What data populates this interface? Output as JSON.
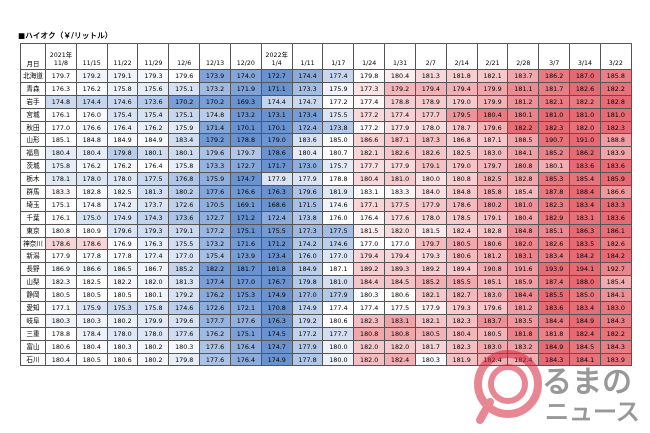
{
  "title": "■ハイオク（￥/リットル）",
  "header": {
    "corner": "月日",
    "dates": [
      {
        "top": "2021年",
        "bottom": "11/8"
      },
      {
        "top": "",
        "bottom": "11/15"
      },
      {
        "top": "",
        "bottom": "11/22"
      },
      {
        "top": "",
        "bottom": "11/29"
      },
      {
        "top": "",
        "bottom": "12/6"
      },
      {
        "top": "",
        "bottom": "12/13"
      },
      {
        "top": "",
        "bottom": "12/20"
      },
      {
        "top": "2022年",
        "bottom": "1/4"
      },
      {
        "top": "",
        "bottom": "1/11"
      },
      {
        "top": "",
        "bottom": "1/17"
      },
      {
        "top": "",
        "bottom": "1/24"
      },
      {
        "top": "",
        "bottom": "1/31"
      },
      {
        "top": "",
        "bottom": "2/7"
      },
      {
        "top": "",
        "bottom": "2/14"
      },
      {
        "top": "",
        "bottom": "2/21"
      },
      {
        "top": "",
        "bottom": "2/28"
      },
      {
        "top": "",
        "bottom": "3/7"
      },
      {
        "top": "",
        "bottom": "3/14"
      },
      {
        "top": "",
        "bottom": "3/22"
      }
    ]
  },
  "rows": [
    {
      "pref": "北海道",
      "values": [
        "179.7",
        "179.2",
        "179.1",
        "179.3",
        "179.6",
        "173.9",
        "174.0",
        "172.7",
        "174.4",
        "177.4",
        "179.8",
        "180.4",
        "181.3",
        "181.8",
        "182.1",
        "183.7",
        "186.2",
        "187.0",
        "185.8"
      ]
    },
    {
      "pref": "青森",
      "values": [
        "176.3",
        "176.2",
        "175.8",
        "175.6",
        "175.1",
        "173.2",
        "171.9",
        "171.1",
        "173.3",
        "175.9",
        "177.3",
        "179.2",
        "179.4",
        "179.4",
        "179.9",
        "181.1",
        "181.7",
        "182.6",
        "182.2"
      ]
    },
    {
      "pref": "岩手",
      "values": [
        "174.8",
        "174.4",
        "174.6",
        "173.6",
        "170.2",
        "170.2",
        "169.3",
        "174.4",
        "174.7",
        "177.2",
        "177.4",
        "178.8",
        "178.9",
        "179.0",
        "179.9",
        "181.2",
        "182.1",
        "182.2",
        "182.8"
      ]
    },
    {
      "pref": "宮城",
      "values": [
        "176.1",
        "176.0",
        "175.4",
        "175.4",
        "175.1",
        "174.8",
        "173.2",
        "173.1",
        "173.4",
        "175.5",
        "177.2",
        "177.4",
        "177.7",
        "179.5",
        "180.4",
        "180.1",
        "181.0",
        "181.0",
        "181.0"
      ]
    },
    {
      "pref": "秋田",
      "values": [
        "177.0",
        "176.6",
        "176.4",
        "176.2",
        "175.9",
        "171.4",
        "170.1",
        "170.1",
        "172.4",
        "173.8",
        "177.2",
        "177.9",
        "178.0",
        "178.7",
        "179.6",
        "182.2",
        "182.3",
        "182.0",
        "182.3"
      ]
    },
    {
      "pref": "山形",
      "values": [
        "185.1",
        "184.8",
        "184.9",
        "184.9",
        "183.4",
        "179.2",
        "178.8",
        "179.0",
        "183.6",
        "185.0",
        "186.6",
        "187.1",
        "187.3",
        "186.8",
        "187.1",
        "188.5",
        "190.7",
        "191.0",
        "188.8"
      ]
    },
    {
      "pref": "福島",
      "values": [
        "180.4",
        "180.4",
        "179.8",
        "180.1",
        "180.1",
        "179.6",
        "179.7",
        "178.6",
        "180.4",
        "180.7",
        "182.1",
        "182.6",
        "182.6",
        "182.5",
        "183.0",
        "184.1",
        "185.2",
        "186.2",
        "183.9"
      ]
    },
    {
      "pref": "茨城",
      "values": [
        "175.8",
        "176.2",
        "176.2",
        "176.4",
        "175.8",
        "173.3",
        "172.7",
        "171.7",
        "173.0",
        "175.7",
        "177.7",
        "177.9",
        "179.1",
        "179.0",
        "179.7",
        "180.8",
        "180.1",
        "183.6",
        "183.6"
      ]
    },
    {
      "pref": "栃木",
      "values": [
        "178.1",
        "178.0",
        "178.0",
        "177.5",
        "176.8",
        "175.9",
        "174.7",
        "177.9",
        "177.9",
        "178.8",
        "180.4",
        "181.0",
        "180.0",
        "180.8",
        "182.5",
        "182.8",
        "185.3",
        "185.4",
        "185.9"
      ]
    },
    {
      "pref": "群馬",
      "values": [
        "183.3",
        "182.8",
        "182.5",
        "181.3",
        "180.2",
        "177.6",
        "176.6",
        "176.3",
        "179.6",
        "181.9",
        "183.1",
        "183.3",
        "184.0",
        "184.8",
        "185.8",
        "185.4",
        "187.8",
        "188.4",
        "186.6"
      ]
    },
    {
      "pref": "埼玉",
      "values": [
        "175.1",
        "174.8",
        "174.2",
        "173.7",
        "172.6",
        "170.5",
        "169.1",
        "168.6",
        "171.5",
        "174.6",
        "177.1",
        "177.5",
        "177.9",
        "178.6",
        "180.2",
        "181.0",
        "182.3",
        "183.4",
        "183.3"
      ]
    },
    {
      "pref": "千葉",
      "values": [
        "176.1",
        "175.0",
        "174.9",
        "174.3",
        "173.6",
        "172.7",
        "171.2",
        "172.4",
        "173.8",
        "176.0",
        "176.4",
        "177.6",
        "178.0",
        "178.5",
        "179.1",
        "180.4",
        "182.9",
        "183.1",
        "183.6"
      ]
    },
    {
      "pref": "東京",
      "values": [
        "180.8",
        "180.9",
        "179.6",
        "179.3",
        "179.1",
        "177.2",
        "175.1",
        "175.5",
        "177.3",
        "177.5",
        "181.5",
        "182.0",
        "181.5",
        "182.4",
        "182.8",
        "184.8",
        "185.1",
        "186.3",
        "186.1"
      ]
    },
    {
      "pref": "神奈川",
      "values": [
        "178.6",
        "178.6",
        "176.9",
        "176.3",
        "175.5",
        "173.2",
        "171.6",
        "171.2",
        "174.2",
        "174.6",
        "177.0",
        "177.0",
        "179.7",
        "180.5",
        "180.6",
        "182.0",
        "182.6",
        "183.5",
        "182.6"
      ]
    },
    {
      "pref": "新潟",
      "values": [
        "177.9",
        "177.8",
        "177.8",
        "177.4",
        "177.0",
        "175.4",
        "173.9",
        "173.4",
        "176.0",
        "177.0",
        "179.4",
        "179.4",
        "179.3",
        "180.6",
        "181.2",
        "183.1",
        "183.4",
        "184.2",
        "184.2"
      ]
    },
    {
      "pref": "長野",
      "values": [
        "186.9",
        "186.6",
        "186.5",
        "186.7",
        "185.2",
        "182.2",
        "181.7",
        "181.8",
        "184.9",
        "187.1",
        "189.2",
        "189.3",
        "189.2",
        "189.4",
        "190.8",
        "191.6",
        "193.9",
        "194.1",
        "192.7"
      ]
    },
    {
      "pref": "山梨",
      "values": [
        "182.3",
        "182.5",
        "182.2",
        "182.0",
        "181.3",
        "177.4",
        "177.0",
        "176.7",
        "179.8",
        "181.0",
        "184.4",
        "184.5",
        "185.2",
        "185.5",
        "185.1",
        "185.9",
        "187.4",
        "188.0",
        "185.4"
      ]
    },
    {
      "pref": "静岡",
      "values": [
        "180.5",
        "180.5",
        "180.5",
        "180.1",
        "179.2",
        "176.2",
        "175.3",
        "174.9",
        "177.0",
        "177.9",
        "180.3",
        "180.6",
        "182.1",
        "182.7",
        "183.0",
        "184.4",
        "185.5",
        "185.0",
        "184.1"
      ]
    },
    {
      "pref": "愛知",
      "values": [
        "177.1",
        "175.9",
        "175.3",
        "175.8",
        "174.6",
        "172.6",
        "172.1",
        "170.8",
        "174.9",
        "177.4",
        "177.4",
        "177.5",
        "177.9",
        "179.3",
        "179.6",
        "181.2",
        "183.6",
        "183.4",
        "183.0"
      ]
    },
    {
      "pref": "岐阜",
      "values": [
        "180.3",
        "180.3",
        "180.2",
        "179.9",
        "179.6",
        "177.7",
        "177.6",
        "176.3",
        "179.2",
        "180.6",
        "182.3",
        "183.1",
        "182.1",
        "182.3",
        "183.7",
        "183.5",
        "184.4",
        "184.9",
        "184.3"
      ]
    },
    {
      "pref": "三重",
      "values": [
        "178.8",
        "178.4",
        "178.0",
        "178.0",
        "177.6",
        "176.2",
        "175.1",
        "174.5",
        "177.2",
        "177.7",
        "180.8",
        "180.8",
        "180.5",
        "180.4",
        "180.5",
        "181.8",
        "181.8",
        "182.4",
        "182.2"
      ]
    },
    {
      "pref": "富山",
      "values": [
        "180.6",
        "180.4",
        "180.3",
        "180.2",
        "180.3",
        "177.6",
        "176.4",
        "174.7",
        "177.9",
        "180.0",
        "182.0",
        "182.0",
        "181.7",
        "182.3",
        "183.0",
        "183.2",
        "184.9",
        "184.5",
        "184.3"
      ]
    },
    {
      "pref": "石川",
      "values": [
        "180.4",
        "180.5",
        "180.6",
        "180.2",
        "179.8",
        "177.6",
        "176.4",
        "174.9",
        "177.8",
        "180.0",
        "182.0",
        "182.4",
        "180.3",
        "181.9",
        "182.4",
        "182.4",
        "184.3",
        "184.1",
        "183.9"
      ]
    }
  ],
  "colors": {
    "low": "#4f7fc7",
    "mid": "#ffffff",
    "high": "#e0505a",
    "border": "#555555"
  }
}
